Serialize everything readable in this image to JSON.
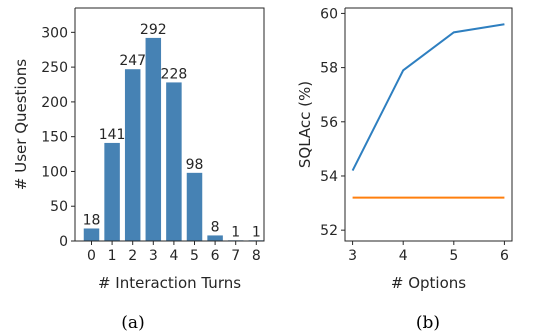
{
  "colors": {
    "bar": "#4682b4",
    "line_blue": "#2e7fc0",
    "line_orange": "#ff7f0e",
    "axis": "#262626"
  },
  "chart_data": [
    {
      "type": "bar",
      "caption": "(a)",
      "xlabel": "# Interaction Turns",
      "ylabel": "# User Questions",
      "categories": [
        "0",
        "1",
        "2",
        "3",
        "4",
        "5",
        "6",
        "7",
        "8"
      ],
      "values": [
        18,
        141,
        247,
        292,
        228,
        98,
        8,
        1,
        1
      ],
      "data_labels": [
        "18",
        "141",
        "247",
        "292",
        "228",
        "98",
        "8",
        "1",
        "1"
      ],
      "yticks": [
        0,
        50,
        100,
        150,
        200,
        250,
        300
      ],
      "ylim": [
        0,
        335
      ],
      "grid": false
    },
    {
      "type": "line",
      "caption": "(b)",
      "xlabel": "# Options",
      "ylabel": "SQLAcc (%)",
      "xticks": [
        3,
        4,
        5,
        6
      ],
      "yticks": [
        52,
        54,
        56,
        58,
        60
      ],
      "xlim": [
        2.85,
        6.15
      ],
      "ylim": [
        51.6,
        60.2
      ],
      "grid": false,
      "series": [
        {
          "x": [
            3,
            4,
            5,
            6
          ],
          "values": [
            54.2,
            57.9,
            59.3,
            59.6
          ]
        },
        {
          "x": [
            3,
            4,
            5,
            6
          ],
          "values": [
            53.2,
            53.2,
            53.2,
            53.2
          ]
        }
      ]
    }
  ]
}
